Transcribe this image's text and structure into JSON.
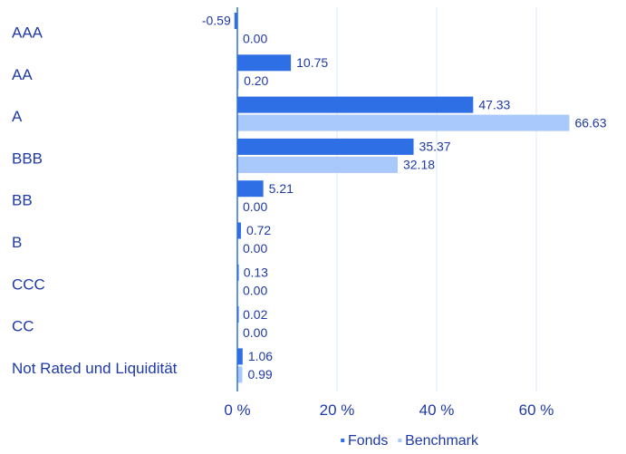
{
  "chart_data": {
    "type": "bar",
    "orientation": "horizontal",
    "categories": [
      "AAA",
      "AA",
      "A",
      "BBB",
      "BB",
      "B",
      "CCC",
      "CC",
      "Not Rated und Liquidität"
    ],
    "series": [
      {
        "name": "Fonds",
        "color": "#2f6fe6",
        "values": [
          -0.59,
          10.75,
          47.33,
          35.37,
          5.21,
          0.72,
          0.13,
          0.02,
          1.06
        ],
        "labels": [
          "-0.59",
          "10.75",
          "47.33",
          "35.37",
          "5.21",
          "0.72",
          "0.13",
          "0.02",
          "1.06"
        ]
      },
      {
        "name": "Benchmark",
        "color": "#a9c8fb",
        "values": [
          0.0,
          0.2,
          66.63,
          32.18,
          0.0,
          0.0,
          0.0,
          0.0,
          0.99
        ],
        "labels": [
          "0.00",
          "0.20",
          "66.63",
          "32.18",
          "0.00",
          "0.00",
          "0.00",
          "0.00",
          "0.99"
        ]
      }
    ],
    "x_ticks": [
      0,
      20,
      40,
      60
    ],
    "x_tick_labels": [
      "0 %",
      "20 %",
      "40 %",
      "60 %"
    ],
    "xlim": [
      -1.5,
      75
    ],
    "grid": "vertical",
    "legend": "bottom-right",
    "legend_marker": "▪",
    "grid_color": "#dbe8fb",
    "axis_color": "#2f6fe6",
    "text_color": "#1f3aa6"
  }
}
